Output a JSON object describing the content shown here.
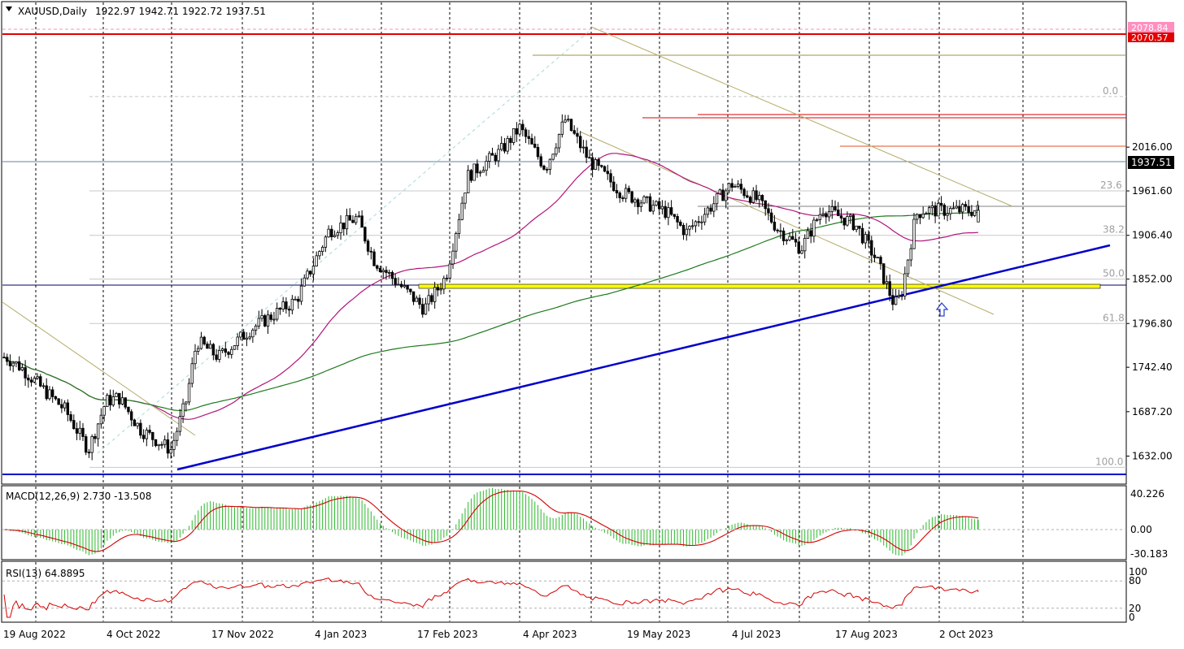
{
  "header": {
    "symbol": "XAUUSD,Daily",
    "ohlc": "1922.97 1942.71 1922.72 1937.51"
  },
  "price_axis": {
    "ticks": [
      "2016.00",
      "1961.60",
      "1906.40",
      "1852.00",
      "1796.80",
      "1742.40",
      "1687.20",
      "1632.00"
    ],
    "current_price": "1937.51",
    "level_top": "2078.84",
    "level_red": "2070.57"
  },
  "fib_labels": [
    "0.0",
    "23.6",
    "38.2",
    "50.0",
    "61.8",
    "100.0"
  ],
  "macd": {
    "label": "MACD(12,26,9) 2.730 -13.508",
    "ticks": [
      "40.226",
      "0.00",
      "-30.183"
    ]
  },
  "rsi": {
    "label": "RSI(13) 64.8895",
    "ticks": [
      "100",
      "80",
      "20",
      "0"
    ]
  },
  "time_axis": [
    "19 Aug 2022",
    "4 Oct 2022",
    "17 Nov 2022",
    "4 Jan 2023",
    "17 Feb 2023",
    "4 Apr 2023",
    "19 May 2023",
    "4 Jul 2023",
    "17 Aug 2023",
    "2 Oct 2023"
  ],
  "colors": {
    "bull_candle": "#ffffff",
    "bear_candle": "#000000",
    "candle_outline": "#000000",
    "ma_fast": "#b0157a",
    "ma_slow": "#1e7a1e",
    "support_zone": "#ffff00",
    "trendline": "#0000cc",
    "resistance": "#e00000",
    "macd_hist": "#2db82d",
    "macd_signal": "#d40000",
    "rsi_line": "#d40000",
    "channel": "#b5ab6a"
  },
  "chart_data": {
    "type": "candlestick",
    "symbol": "XAUUSD",
    "timeframe": "Daily",
    "last_bar": {
      "open": 1922.97,
      "high": 1942.71,
      "low": 1922.72,
      "close": 1937.51
    },
    "ylim": [
      1618,
      2082
    ],
    "key_levels": {
      "fib_0": 2078.84,
      "resistance": 2070.57,
      "fib_23_6": 1961.6,
      "fib_38_2": 1906.4,
      "fib_50": 1852.0,
      "fib_61_8": 1796.8,
      "fib_100": 1618.0
    },
    "close_path": [
      {
        "date": "2022-08-19",
        "close": 1755
      },
      {
        "date": "2022-08-26",
        "close": 1742
      },
      {
        "date": "2022-09-05",
        "close": 1715
      },
      {
        "date": "2022-09-15",
        "close": 1690
      },
      {
        "date": "2022-09-26",
        "close": 1640
      },
      {
        "date": "2022-10-04",
        "close": 1700
      },
      {
        "date": "2022-10-10",
        "close": 1705
      },
      {
        "date": "2022-10-20",
        "close": 1665
      },
      {
        "date": "2022-11-03",
        "close": 1640
      },
      {
        "date": "2022-11-10",
        "close": 1700
      },
      {
        "date": "2022-11-15",
        "close": 1775
      },
      {
        "date": "2022-11-25",
        "close": 1755
      },
      {
        "date": "2022-12-10",
        "close": 1790
      },
      {
        "date": "2022-12-31",
        "close": 1826
      },
      {
        "date": "2023-01-15",
        "close": 1912
      },
      {
        "date": "2023-01-28",
        "close": 1928
      },
      {
        "date": "2023-02-05",
        "close": 1875
      },
      {
        "date": "2023-02-20",
        "close": 1836
      },
      {
        "date": "2023-02-28",
        "close": 1815
      },
      {
        "date": "2023-03-10",
        "close": 1855
      },
      {
        "date": "2023-03-20",
        "close": 1980
      },
      {
        "date": "2023-04-04",
        "close": 2010
      },
      {
        "date": "2023-04-13",
        "close": 2040
      },
      {
        "date": "2023-04-25",
        "close": 1990
      },
      {
        "date": "2023-05-04",
        "close": 2050
      },
      {
        "date": "2023-05-15",
        "close": 2000
      },
      {
        "date": "2023-05-30",
        "close": 1960
      },
      {
        "date": "2023-06-20",
        "close": 1935
      },
      {
        "date": "2023-06-29",
        "close": 1910
      },
      {
        "date": "2023-07-20",
        "close": 1970
      },
      {
        "date": "2023-08-01",
        "close": 1950
      },
      {
        "date": "2023-08-10",
        "close": 1915
      },
      {
        "date": "2023-08-21",
        "close": 1890
      },
      {
        "date": "2023-08-31",
        "close": 1940
      },
      {
        "date": "2023-09-15",
        "close": 1920
      },
      {
        "date": "2023-09-25",
        "close": 1875
      },
      {
        "date": "2023-10-03",
        "close": 1820
      },
      {
        "date": "2023-10-06",
        "close": 1830
      },
      {
        "date": "2023-10-13",
        "close": 1932
      },
      {
        "date": "2023-10-16",
        "close": 1937.51
      }
    ]
  }
}
